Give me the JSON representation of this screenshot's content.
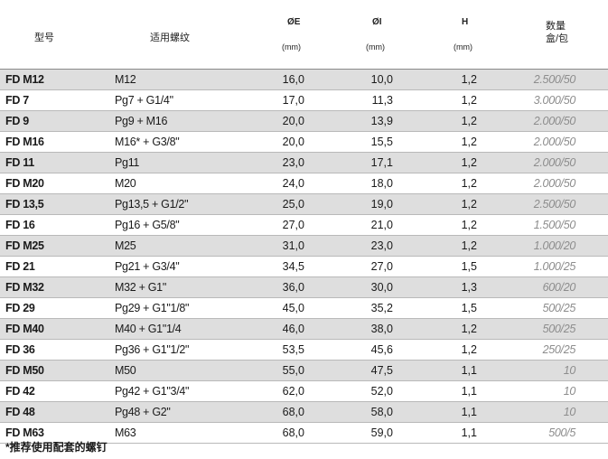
{
  "header": {
    "model": "型号",
    "thread": "适用螺纹",
    "oe": "ØE",
    "oe_unit": "(mm)",
    "oi": "ØI",
    "oi_unit": "(mm)",
    "h": "H",
    "h_unit": "(mm)",
    "qty_line1": "数量",
    "qty_line2": "盒/包"
  },
  "rows": [
    {
      "model": "FD M12",
      "thread": "M12",
      "oe": "16,0",
      "oi": "10,0",
      "h": "1,2",
      "qty": "2.500/50"
    },
    {
      "model": "FD 7",
      "thread": "Pg7 + G1/4\"",
      "oe": "17,0",
      "oi": "11,3",
      "h": "1,2",
      "qty": "3.000/50"
    },
    {
      "model": "FD 9",
      "thread": "Pg9 + M16",
      "oe": "20,0",
      "oi": "13,9",
      "h": "1,2",
      "qty": "2.000/50"
    },
    {
      "model": "FD M16",
      "thread": "M16* + G3/8\"",
      "oe": "20,0",
      "oi": "15,5",
      "h": "1,2",
      "qty": "2.000/50"
    },
    {
      "model": "FD 11",
      "thread": "Pg11",
      "oe": "23,0",
      "oi": "17,1",
      "h": "1,2",
      "qty": "2.000/50"
    },
    {
      "model": "FD M20",
      "thread": "M20",
      "oe": "24,0",
      "oi": "18,0",
      "h": "1,2",
      "qty": "2.000/50"
    },
    {
      "model": "FD 13,5",
      "thread": "Pg13,5 + G1/2\"",
      "oe": "25,0",
      "oi": "19,0",
      "h": "1,2",
      "qty": "2.500/50"
    },
    {
      "model": "FD 16",
      "thread": "Pg16 + G5/8\"",
      "oe": "27,0",
      "oi": "21,0",
      "h": "1,2",
      "qty": "1.500/50"
    },
    {
      "model": "FD M25",
      "thread": "M25",
      "oe": "31,0",
      "oi": "23,0",
      "h": "1,2",
      "qty": "1.000/20"
    },
    {
      "model": "FD 21",
      "thread": "Pg21 + G3/4\"",
      "oe": "34,5",
      "oi": "27,0",
      "h": "1,5",
      "qty": "1.000/25"
    },
    {
      "model": "FD M32",
      "thread": "M32 + G1\"",
      "oe": "36,0",
      "oi": "30,0",
      "h": "1,3",
      "qty": "600/20"
    },
    {
      "model": "FD 29",
      "thread": "Pg29 + G1\"1/8\"",
      "oe": "45,0",
      "oi": "35,2",
      "h": "1,5",
      "qty": "500/25"
    },
    {
      "model": "FD M40",
      "thread": "M40 + G1\"1/4",
      "oe": "46,0",
      "oi": "38,0",
      "h": "1,2",
      "qty": "500/25"
    },
    {
      "model": "FD 36",
      "thread": "Pg36 + G1\"1/2\"",
      "oe": "53,5",
      "oi": "45,6",
      "h": "1,2",
      "qty": "250/25"
    },
    {
      "model": "FD M50",
      "thread": "M50",
      "oe": "55,0",
      "oi": "47,5",
      "h": "1,1",
      "qty": "10"
    },
    {
      "model": "FD 42",
      "thread": "Pg42 + G1\"3/4\"",
      "oe": "62,0",
      "oi": "52,0",
      "h": "1,1",
      "qty": "10"
    },
    {
      "model": "FD 48",
      "thread": "Pg48 + G2\"",
      "oe": "68,0",
      "oi": "58,0",
      "h": "1,1",
      "qty": "10"
    },
    {
      "model": "FD M63",
      "thread": "M63",
      "oe": "68,0",
      "oi": "59,0",
      "h": "1,1",
      "qty": "500/5"
    }
  ],
  "footnote": "*推荐使用配套的螺钉"
}
